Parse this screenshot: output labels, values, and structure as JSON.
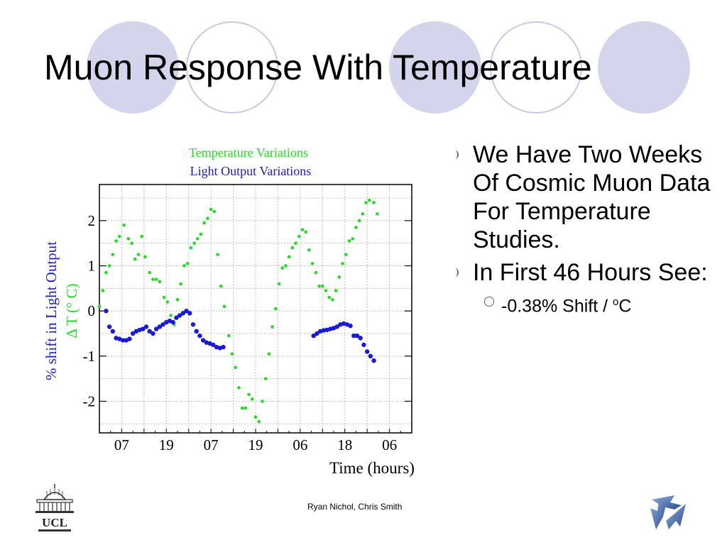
{
  "slide": {
    "title": "Muon Response With Temperature",
    "footer": "Ryan Nichol, Chris Smith",
    "logo_left_text": "UCL",
    "bullets": [
      "We Have Two Weeks Of Cosmic Muon Data For Temperature Studies.",
      "In First 46 Hours See:"
    ],
    "sub_bullet": {
      "prefix": "-0.38% Shift / ",
      "sup": "o",
      "suffix": "C"
    }
  },
  "colors": {
    "decor_filled": "#d4d4ec",
    "decor_ring": "#c9c9e6",
    "temperature": "#22dd22",
    "light_output": "#1a1ad6",
    "bullet_marker": "#5a5ab0"
  },
  "chart_data": {
    "type": "scatter",
    "title_lines": [
      "Temperature Variations",
      "Light Output Variations"
    ],
    "xlabel": "Time (hours)",
    "ylabel_lines": [
      "% shift in Light Output",
      "Δ T (° C)"
    ],
    "x_tick_labels": [
      "07",
      "19",
      "07",
      "19",
      "06",
      "18",
      "06"
    ],
    "y_ticks": [
      -2,
      -1,
      0,
      1,
      2
    ],
    "xlim": [
      0,
      14
    ],
    "ylim": [
      -2.7,
      2.8
    ],
    "grid": true,
    "series": [
      {
        "name": "Temperature Variations",
        "color": "#22dd22",
        "points": [
          [
            0,
            0.1
          ],
          [
            0.15,
            0.45
          ],
          [
            0.3,
            0.85
          ],
          [
            0.45,
            1.0
          ],
          [
            0.6,
            1.25
          ],
          [
            0.75,
            1.55
          ],
          [
            0.9,
            1.65
          ],
          [
            1.1,
            1.9
          ],
          [
            1.3,
            1.6
          ],
          [
            1.45,
            1.5
          ],
          [
            1.6,
            1.15
          ],
          [
            1.75,
            1.25
          ],
          [
            1.9,
            1.65
          ],
          [
            2.05,
            1.2
          ],
          [
            2.25,
            0.85
          ],
          [
            2.4,
            0.7
          ],
          [
            2.55,
            0.7
          ],
          [
            2.7,
            0.65
          ],
          [
            2.9,
            0.3
          ],
          [
            3.05,
            0.2
          ],
          [
            3.2,
            -0.1
          ],
          [
            3.35,
            -0.3
          ],
          [
            3.5,
            0.25
          ],
          [
            3.65,
            0.6
          ],
          [
            3.8,
            1.0
          ],
          [
            3.95,
            1.05
          ],
          [
            4.1,
            1.4
          ],
          [
            4.25,
            1.5
          ],
          [
            4.4,
            1.6
          ],
          [
            4.55,
            1.7
          ],
          [
            4.7,
            1.95
          ],
          [
            4.85,
            2.05
          ],
          [
            5.0,
            2.25
          ],
          [
            5.15,
            2.2
          ],
          [
            5.3,
            1.25
          ],
          [
            5.45,
            0.55
          ],
          [
            5.6,
            0.1
          ],
          [
            5.8,
            -0.55
          ],
          [
            5.95,
            -0.95
          ],
          [
            6.1,
            -1.25
          ],
          [
            6.25,
            -1.7
          ],
          [
            6.4,
            -2.15
          ],
          [
            6.55,
            -2.15
          ],
          [
            6.7,
            -1.85
          ],
          [
            6.85,
            -1.95
          ],
          [
            7.0,
            -2.35
          ],
          [
            7.15,
            -2.45
          ],
          [
            7.3,
            -2.0
          ],
          [
            7.45,
            -1.5
          ],
          [
            7.6,
            -0.95
          ],
          [
            7.75,
            -0.35
          ],
          [
            7.9,
            0.05
          ],
          [
            8.05,
            0.6
          ],
          [
            8.2,
            0.95
          ],
          [
            8.35,
            1.0
          ],
          [
            8.5,
            1.2
          ],
          [
            8.65,
            1.4
          ],
          [
            8.8,
            1.5
          ],
          [
            8.95,
            1.65
          ],
          [
            9.1,
            1.8
          ],
          [
            9.25,
            1.75
          ],
          [
            9.4,
            1.35
          ],
          [
            9.55,
            1.05
          ],
          [
            9.7,
            0.85
          ],
          [
            9.85,
            0.55
          ],
          [
            10.0,
            0.55
          ],
          [
            10.15,
            0.45
          ],
          [
            10.3,
            0.3
          ],
          [
            10.45,
            0.25
          ],
          [
            10.6,
            0.45
          ],
          [
            10.75,
            0.75
          ],
          [
            10.9,
            1.05
          ],
          [
            11.05,
            1.25
          ],
          [
            11.2,
            1.55
          ],
          [
            11.35,
            1.6
          ],
          [
            11.5,
            1.85
          ],
          [
            11.65,
            2.0
          ],
          [
            11.8,
            2.15
          ],
          [
            11.95,
            2.4
          ],
          [
            12.1,
            2.45
          ],
          [
            12.3,
            2.4
          ],
          [
            12.45,
            2.15
          ]
        ]
      },
      {
        "name": "Light Output Variations",
        "color": "#1a1ad6",
        "points": [
          [
            0.3,
            0.0
          ],
          [
            0.45,
            -0.35
          ],
          [
            0.6,
            -0.45
          ],
          [
            0.75,
            -0.6
          ],
          [
            0.9,
            -0.62
          ],
          [
            1.05,
            -0.65
          ],
          [
            1.2,
            -0.65
          ],
          [
            1.35,
            -0.62
          ],
          [
            1.5,
            -0.5
          ],
          [
            1.65,
            -0.45
          ],
          [
            1.8,
            -0.42
          ],
          [
            1.95,
            -0.4
          ],
          [
            2.1,
            -0.35
          ],
          [
            2.25,
            -0.45
          ],
          [
            2.4,
            -0.5
          ],
          [
            2.55,
            -0.4
          ],
          [
            2.7,
            -0.35
          ],
          [
            2.85,
            -0.3
          ],
          [
            3.0,
            -0.25
          ],
          [
            3.15,
            -0.22
          ],
          [
            3.3,
            -0.25
          ],
          [
            3.45,
            -0.15
          ],
          [
            3.6,
            -0.1
          ],
          [
            3.75,
            -0.05
          ],
          [
            3.9,
            0.0
          ],
          [
            4.05,
            -0.05
          ],
          [
            4.2,
            -0.3
          ],
          [
            4.35,
            -0.45
          ],
          [
            4.5,
            -0.55
          ],
          [
            4.65,
            -0.65
          ],
          [
            4.8,
            -0.7
          ],
          [
            4.95,
            -0.72
          ],
          [
            5.1,
            -0.75
          ],
          [
            5.25,
            -0.8
          ],
          [
            5.4,
            -0.82
          ],
          [
            5.55,
            -0.8
          ],
          [
            9.6,
            -0.55
          ],
          [
            9.75,
            -0.5
          ],
          [
            9.9,
            -0.45
          ],
          [
            10.05,
            -0.43
          ],
          [
            10.2,
            -0.42
          ],
          [
            10.35,
            -0.4
          ],
          [
            10.5,
            -0.38
          ],
          [
            10.65,
            -0.35
          ],
          [
            10.8,
            -0.3
          ],
          [
            10.95,
            -0.28
          ],
          [
            11.1,
            -0.3
          ],
          [
            11.25,
            -0.33
          ],
          [
            11.4,
            -0.55
          ],
          [
            11.55,
            -0.55
          ],
          [
            11.7,
            -0.6
          ],
          [
            11.85,
            -0.75
          ],
          [
            12.0,
            -0.9
          ],
          [
            12.15,
            -1.0
          ],
          [
            12.3,
            -1.1
          ]
        ]
      }
    ]
  }
}
